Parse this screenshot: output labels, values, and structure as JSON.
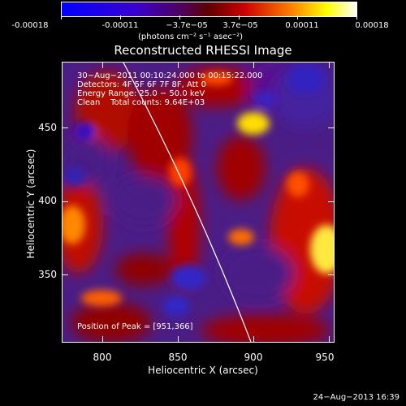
{
  "colorbar": {
    "ticks": [
      "-0.00018",
      "-0.00011",
      "−3.7e−05",
      "3.7e−05",
      "0.00011",
      "0.00018"
    ],
    "units": "(photons cm⁻² s⁻¹ asec⁻²)",
    "colors": [
      "#0000ff",
      "#ff0000",
      "#ffff00",
      "#ffffff"
    ]
  },
  "title": "Reconstructed RHESSI Image",
  "info": {
    "time": "30−Aug−2011 00:10:24.000 to 00:15:22.000",
    "detectors": "Detectors: 4F 5F 6F 7F 8F, Att 0",
    "energy": "Energy Range: 25.0 − 50.0 keV",
    "clean": "Clean    Total counts: 9.64E+03",
    "peak": "Position of Peak = [951,366]"
  },
  "axes": {
    "xlabel": "Heliocentric X (arcsec)",
    "ylabel": "Heliocentric Y (arcsec)",
    "xticks": [
      "800",
      "850",
      "900",
      "950"
    ],
    "yticks": [
      "450",
      "400",
      "350"
    ]
  },
  "footer": {
    "date": "24−Aug−2013 16:39"
  }
}
